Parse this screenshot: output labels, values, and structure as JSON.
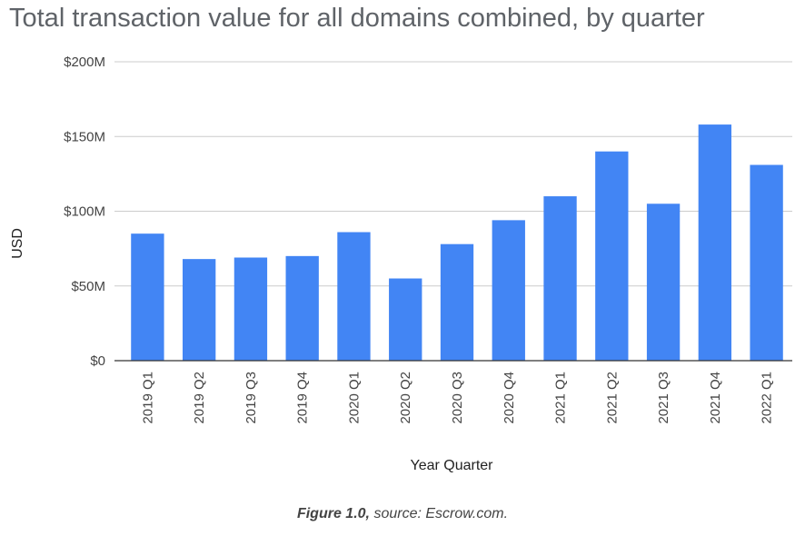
{
  "chart_data": {
    "type": "bar",
    "title": "Total transaction value for all domains combined, by quarter",
    "xlabel": "Year Quarter",
    "ylabel": "USD",
    "categories": [
      "2019 Q1",
      "2019 Q2",
      "2019 Q3",
      "2019 Q4",
      "2020 Q1",
      "2020 Q2",
      "2020 Q3",
      "2020 Q4",
      "2021 Q1",
      "2021 Q2",
      "2021 Q3",
      "2021 Q4",
      "2022 Q1"
    ],
    "values": [
      85,
      68,
      69,
      70,
      86,
      55,
      78,
      94,
      110,
      140,
      105,
      158,
      131
    ],
    "value_unit": "USD millions",
    "ylim": [
      0,
      200
    ],
    "yticks": [
      {
        "value": 0,
        "label": "$0"
      },
      {
        "value": 50,
        "label": "$50M"
      },
      {
        "value": 100,
        "label": "$100M"
      },
      {
        "value": 150,
        "label": "$150M"
      },
      {
        "value": 200,
        "label": "$200M"
      }
    ],
    "grid": true,
    "legend": "none",
    "bar_color": "#4285f4",
    "grid_color": "#cccccc",
    "baseline_color": "#333333"
  },
  "caption": {
    "label": "Figure 1.0,",
    "text": "source: Escrow.com."
  }
}
